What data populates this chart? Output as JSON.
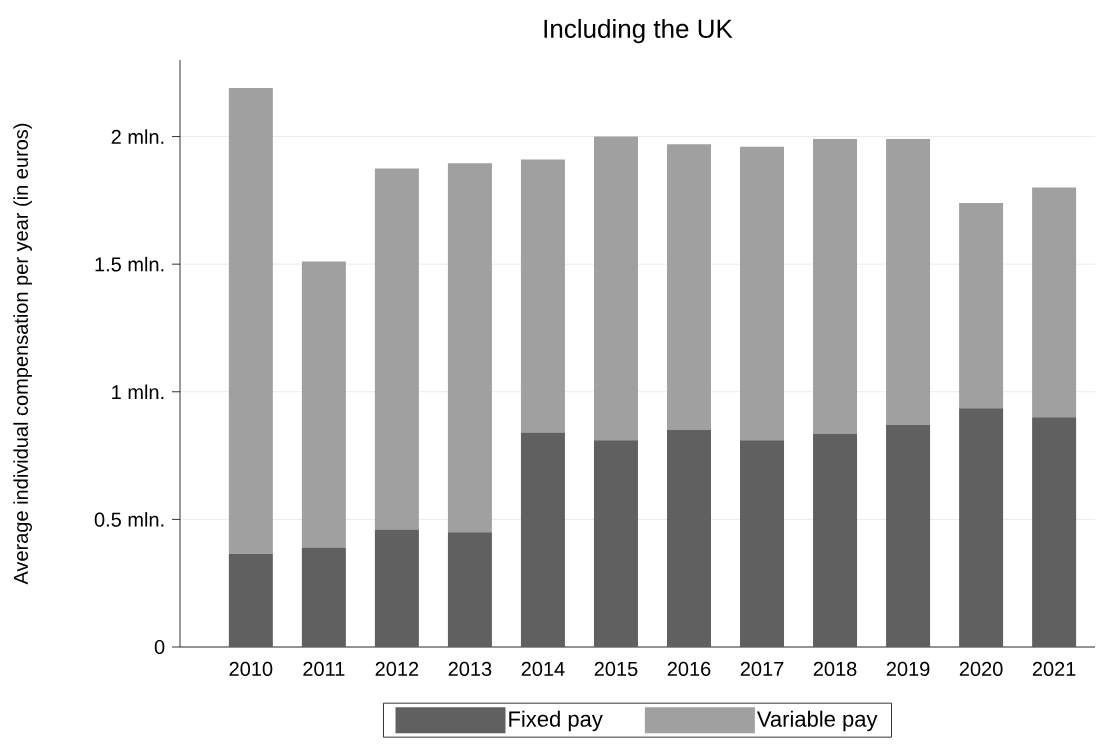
{
  "chart_data": {
    "type": "bar",
    "title": "Including the UK",
    "ylabel": "Average individual compensation per year (in euros)",
    "categories": [
      "2010",
      "2011",
      "2012",
      "2013",
      "2014",
      "2015",
      "2016",
      "2017",
      "2018",
      "2019",
      "2020",
      "2021"
    ],
    "stacked": true,
    "series": [
      {
        "name": "Fixed pay",
        "color": "#606060",
        "values": [
          0.365,
          0.39,
          0.46,
          0.45,
          0.84,
          0.81,
          0.85,
          0.81,
          0.835,
          0.87,
          0.935,
          0.9
        ]
      },
      {
        "name": "Variable pay",
        "color": "#a0a0a0",
        "values": [
          1.825,
          1.12,
          1.415,
          1.445,
          1.07,
          1.19,
          1.12,
          1.15,
          1.155,
          1.12,
          0.805,
          0.9
        ]
      }
    ],
    "ylim": [
      0,
      2.3
    ],
    "yticks": [
      0,
      {
        "value": 0.5,
        "label": "0.5 mln."
      },
      {
        "value": 1,
        "label": "1 mln."
      },
      {
        "value": 1.5,
        "label": "1.5 mln."
      },
      {
        "value": 2,
        "label": "2 mln."
      }
    ],
    "grid": "y",
    "legend": "bottom"
  }
}
